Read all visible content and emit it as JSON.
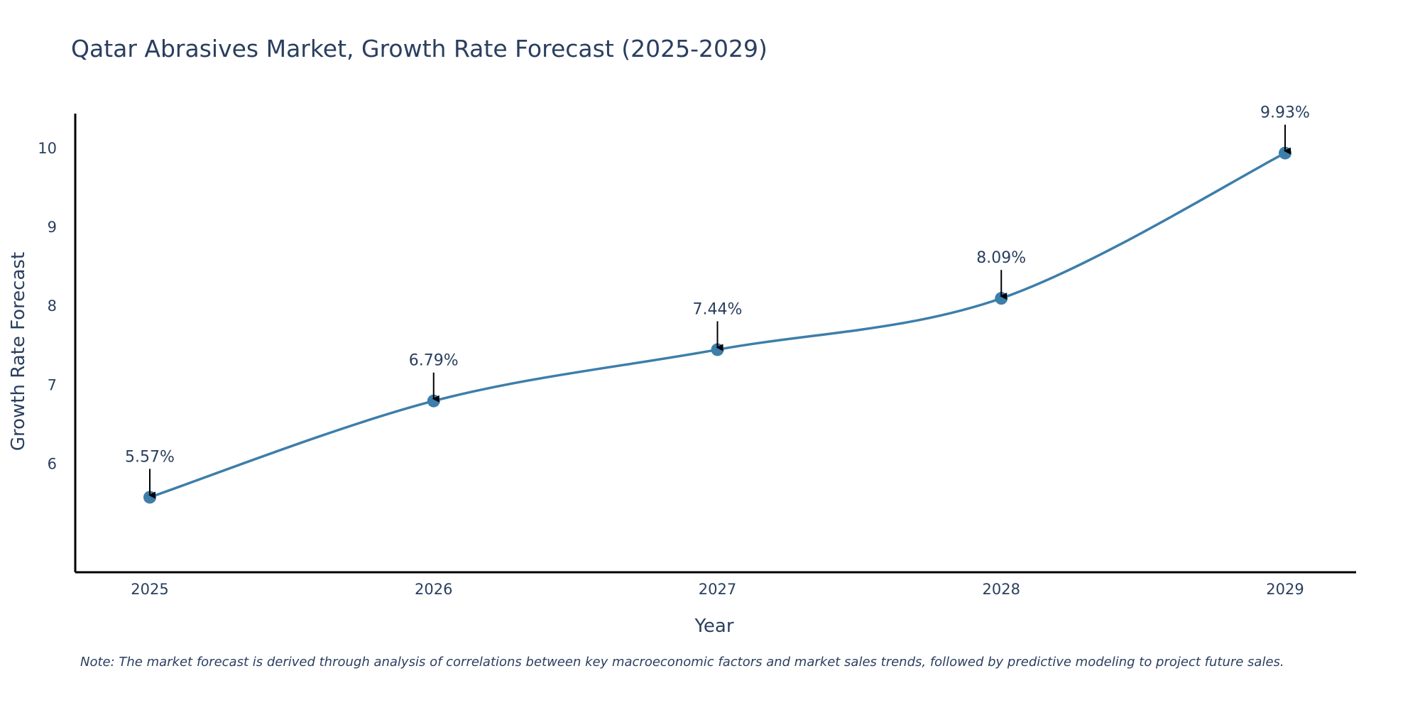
{
  "chart_data": {
    "type": "line",
    "title": "Qatar Abrasives Market, Growth Rate Forecast (2025-2029)",
    "xlabel": "Year",
    "ylabel": "Growth Rate Forecast",
    "categories": [
      "2025",
      "2026",
      "2027",
      "2028",
      "2029"
    ],
    "series": [
      {
        "name": "Growth Rate Forecast",
        "values": [
          5.57,
          6.79,
          7.44,
          8.09,
          9.93
        ],
        "labels": [
          "5.57%",
          "6.79%",
          "7.44%",
          "8.09%",
          "9.93%"
        ]
      }
    ],
    "y_ticks": [
      6,
      7,
      8,
      9,
      10
    ],
    "y_tick_labels": [
      "6",
      "7",
      "8",
      "9",
      "10"
    ],
    "ylim": [
      4.62,
      10.43
    ],
    "grid": false,
    "legend": "none",
    "line_color": "#3d7eaa",
    "marker_color": "#3d7eaa",
    "arrow_color": "#000000",
    "axis_color": "#000000",
    "note": "Note: The market forecast is derived through analysis of correlations between key macroeconomic factors and market sales trends, followed by predictive modeling to project future sales."
  }
}
